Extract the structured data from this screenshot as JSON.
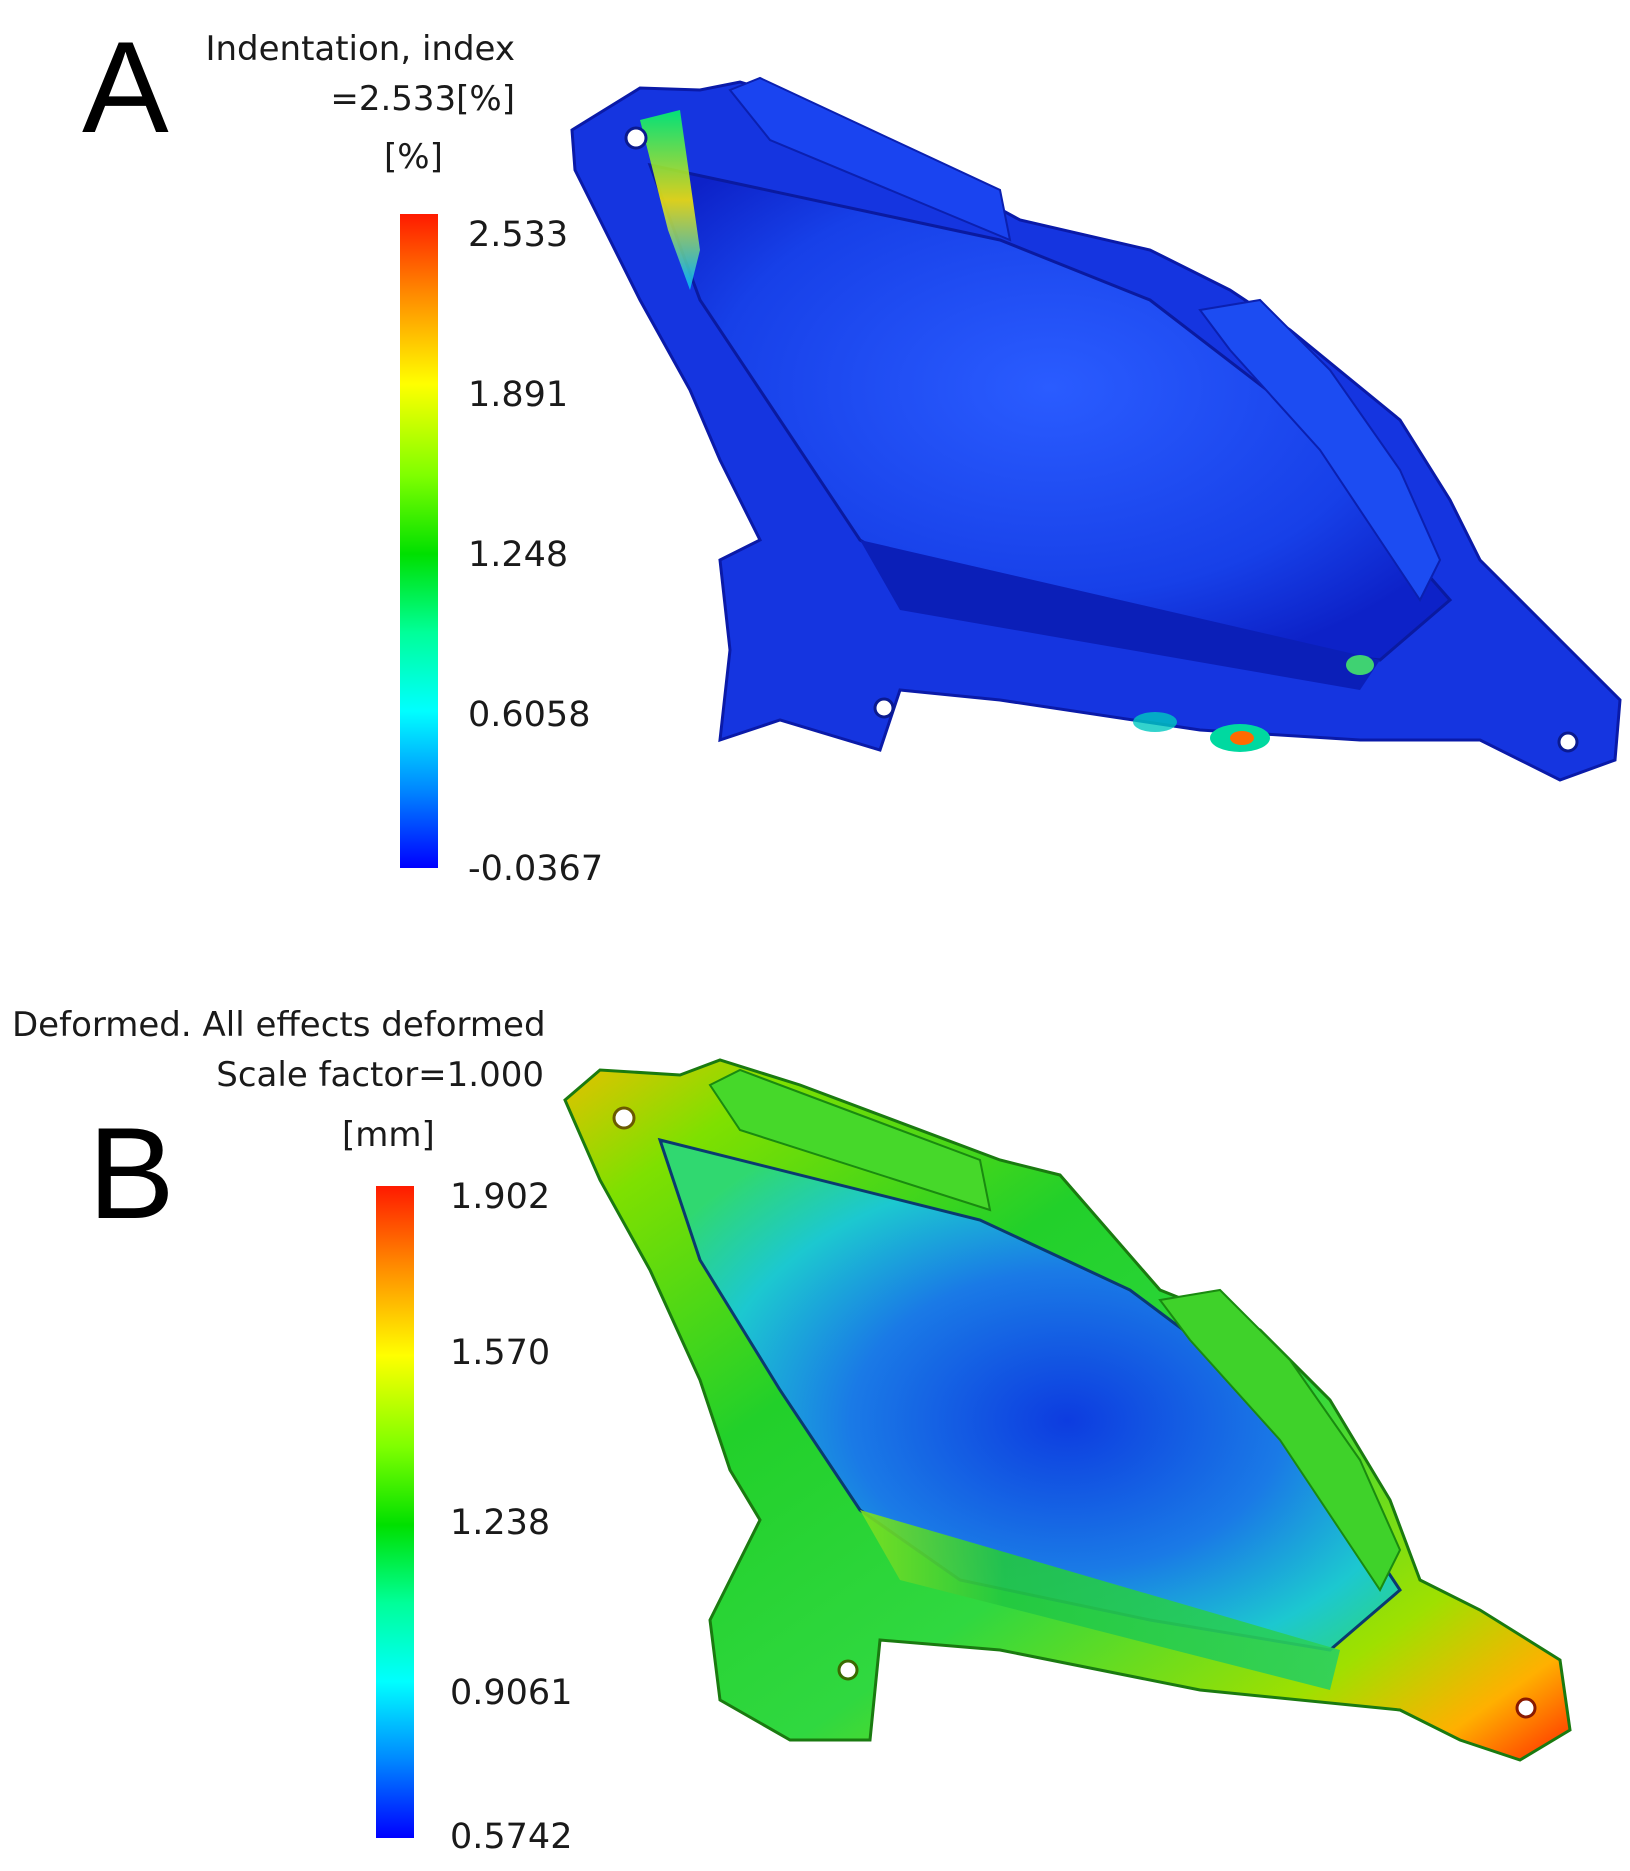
{
  "panels": [
    {
      "letter": "A",
      "title_lines": [
        "Indentation, index",
        "=2.533[%]"
      ],
      "unit": "[%]",
      "ticks": [
        "2.533",
        "1.891",
        "1.248",
        "0.6058",
        "-0.0367"
      ],
      "scale_colors": [
        "#ff1a00",
        "#ffff00",
        "#00e000",
        "#00ffff",
        "#0000ff"
      ]
    },
    {
      "letter": "B",
      "title_lines": [
        "Deformed. All effects deformed",
        "Scale factor=1.000"
      ],
      "unit": "[mm]",
      "ticks": [
        "1.902",
        "1.570",
        "1.238",
        "0.9061",
        "0.5742"
      ],
      "scale_colors": [
        "#ff1a00",
        "#ffff00",
        "#00e000",
        "#00ffff",
        "#0000ff"
      ]
    }
  ]
}
